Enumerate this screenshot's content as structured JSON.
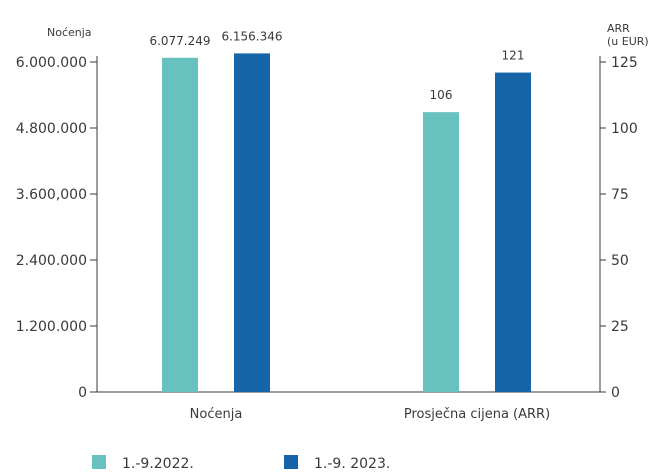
{
  "chart_data": {
    "type": "bar",
    "categories": [
      "Noćenja",
      "Prosječna cijena (ARR)"
    ],
    "series": [
      {
        "name": "1.-9.2022.",
        "color": "#67c1bf",
        "values": [
          6077249,
          106
        ],
        "labels": [
          "6.077.249",
          "106"
        ]
      },
      {
        "name": "1.-9. 2023.",
        "color": "#1565a8",
        "values": [
          6156346,
          121
        ],
        "labels": [
          "6.156.346",
          "121"
        ]
      }
    ],
    "left_axis": {
      "label": "Noćenja",
      "ylim": [
        0,
        6000000
      ],
      "ticks": [
        0,
        1200000,
        2400000,
        3600000,
        4800000,
        6000000
      ],
      "tick_labels": [
        "0",
        "1.200.000",
        "2.400.000",
        "3.600,000",
        "4.800.000",
        "6.000.000"
      ]
    },
    "right_axis": {
      "label_line1": "ARR",
      "label_line2": "(u EUR)",
      "ylim": [
        0,
        125
      ],
      "ticks": [
        0,
        25,
        50,
        75,
        100,
        125
      ],
      "tick_labels": [
        "0",
        "25",
        "50",
        "75",
        "100",
        "125"
      ]
    },
    "category_axis": [
      "left",
      "right"
    ],
    "legend": {
      "position": "bottom-left"
    },
    "grid": false
  }
}
